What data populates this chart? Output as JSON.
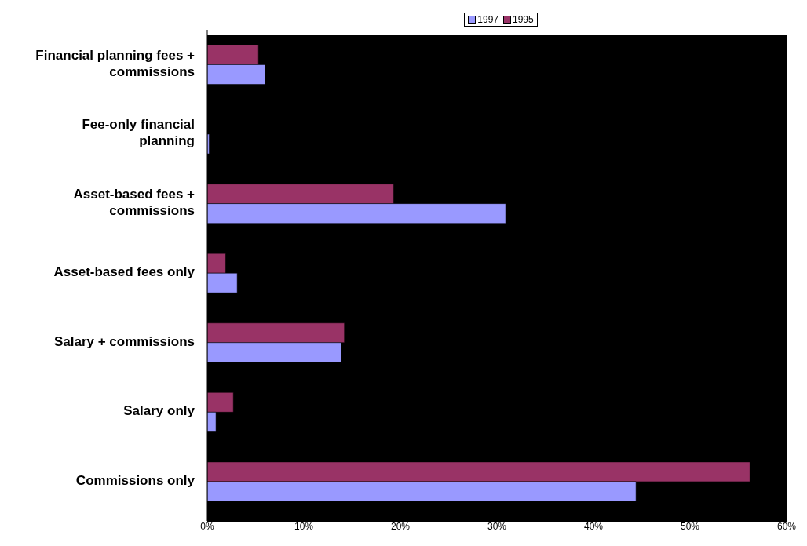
{
  "chart_data": {
    "type": "bar",
    "orientation": "horizontal",
    "categories": [
      "Financial planning fees + commissions",
      "Fee-only financial planning",
      "Asset-based fees + commissions",
      "Asset-based fees only",
      "Salary + commissions",
      "Salary only",
      "Commissions only"
    ],
    "series": [
      {
        "name": "1997",
        "color": "#9999ff",
        "values": [
          6.0,
          0.2,
          30.9,
          3.1,
          13.9,
          0.9,
          44.4
        ]
      },
      {
        "name": "1995",
        "color": "#993366",
        "values": [
          5.3,
          0,
          19.3,
          1.9,
          14.2,
          2.7,
          56.2
        ]
      }
    ],
    "xlim": [
      0,
      60
    ],
    "xticks": [
      {
        "value": 0,
        "label": "0%"
      },
      {
        "value": 10,
        "label": "10%"
      },
      {
        "value": 20,
        "label": "20%"
      },
      {
        "value": 30,
        "label": "30%"
      },
      {
        "value": 40,
        "label": "40%"
      },
      {
        "value": 50,
        "label": "50%"
      },
      {
        "value": 60,
        "label": "60%"
      }
    ],
    "grid": false,
    "legend": "top"
  }
}
